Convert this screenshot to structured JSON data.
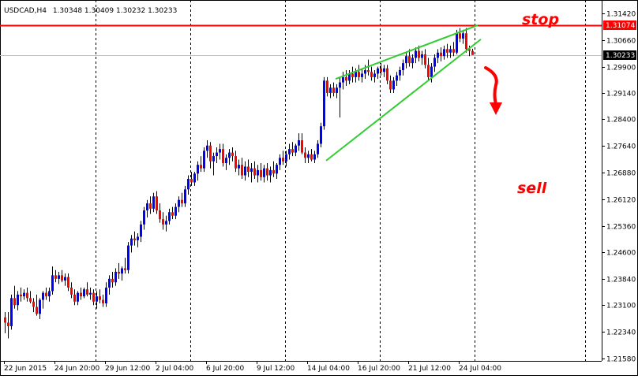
{
  "header": {
    "symbol_caption": "USDCAD,H4",
    "ohlc_values": "1.30348 1.30409 1.30232 1.30233"
  },
  "annotations": {
    "stop_text": "stop",
    "sell_text": "sell"
  },
  "colors": {
    "bull_candle": "#0000ff",
    "bear_candle": "#ff0000",
    "wick": "#000000",
    "stop_line": "#ff0000",
    "bid_line": "#c0c0c0",
    "wedge_lines": "#33cc33",
    "annotation_text": "#ff0000",
    "grid_vertical": "#000000"
  },
  "chart_data": {
    "type": "candlestick",
    "symbol": "USDCAD",
    "timeframe": "H4",
    "title": "USDCAD,H4 1.30348 1.30409 1.30232 1.30233",
    "y_axis_ticks": [
      1.3142,
      1.3066,
      1.299,
      1.2914,
      1.284,
      1.2764,
      1.2688,
      1.2612,
      1.2536,
      1.246,
      1.2384,
      1.231,
      1.2234,
      1.2158
    ],
    "y_axis_tick_labels": [
      "1.31420",
      "1.30660",
      "1.29900",
      "1.29140",
      "1.28400",
      "1.27640",
      "1.26880",
      "1.26120",
      "1.25360",
      "1.24600",
      "1.23840",
      "1.23100",
      "1.22340",
      "1.21580"
    ],
    "ylim": [
      1.2151,
      1.318
    ],
    "x_axis_labels": [
      "22 Jun 2015",
      "24 Jun 20:00",
      "29 Jun 12:00",
      "2 Jul 04:00",
      "6 Jul 20:00",
      "9 Jul 12:00",
      "14 Jul 04:00",
      "16 Jul 20:00",
      "21 Jul 12:00",
      "24 Jul 04:00"
    ],
    "x_axis_label_bar_index": [
      0,
      16,
      32,
      48,
      64,
      80,
      96,
      112,
      128,
      144
    ],
    "vertical_grid_bar_index": [
      29,
      59,
      89,
      119,
      149,
      184
    ],
    "stop_level": {
      "value": 1.31074,
      "label": "1.31074"
    },
    "current_price": {
      "value": 1.30233,
      "label": "1.30233"
    },
    "wedge": {
      "upper": [
        {
          "bar": 105,
          "price": 1.2955
        },
        {
          "bar": 150,
          "price": 1.3108
        }
      ],
      "lower": [
        {
          "bar": 102,
          "price": 1.2722
        },
        {
          "bar": 151,
          "price": 1.3068
        }
      ]
    },
    "candles": [
      {
        "o": 1.2275,
        "h": 1.229,
        "l": 1.223,
        "c": 1.226
      },
      {
        "o": 1.226,
        "h": 1.229,
        "l": 1.2215,
        "c": 1.225
      },
      {
        "o": 1.225,
        "h": 1.234,
        "l": 1.224,
        "c": 1.233
      },
      {
        "o": 1.233,
        "h": 1.2365,
        "l": 1.23,
        "c": 1.231
      },
      {
        "o": 1.231,
        "h": 1.235,
        "l": 1.2295,
        "c": 1.234
      },
      {
        "o": 1.234,
        "h": 1.236,
        "l": 1.232,
        "c": 1.2335
      },
      {
        "o": 1.2335,
        "h": 1.2355,
        "l": 1.2325,
        "c": 1.2345
      },
      {
        "o": 1.2345,
        "h": 1.236,
        "l": 1.232,
        "c": 1.233
      },
      {
        "o": 1.233,
        "h": 1.235,
        "l": 1.2315,
        "c": 1.232
      },
      {
        "o": 1.232,
        "h": 1.233,
        "l": 1.229,
        "c": 1.2305
      },
      {
        "o": 1.2305,
        "h": 1.234,
        "l": 1.228,
        "c": 1.2285
      },
      {
        "o": 1.2285,
        "h": 1.233,
        "l": 1.227,
        "c": 1.2325
      },
      {
        "o": 1.2325,
        "h": 1.235,
        "l": 1.23,
        "c": 1.2345
      },
      {
        "o": 1.2345,
        "h": 1.236,
        "l": 1.2325,
        "c": 1.2335
      },
      {
        "o": 1.2335,
        "h": 1.236,
        "l": 1.232,
        "c": 1.235
      },
      {
        "o": 1.235,
        "h": 1.242,
        "l": 1.234,
        "c": 1.2395
      },
      {
        "o": 1.2395,
        "h": 1.241,
        "l": 1.2375,
        "c": 1.2385
      },
      {
        "o": 1.2385,
        "h": 1.2405,
        "l": 1.237,
        "c": 1.2395
      },
      {
        "o": 1.2395,
        "h": 1.241,
        "l": 1.2375,
        "c": 1.238
      },
      {
        "o": 1.238,
        "h": 1.24,
        "l": 1.2365,
        "c": 1.239
      },
      {
        "o": 1.239,
        "h": 1.24,
        "l": 1.235,
        "c": 1.236
      },
      {
        "o": 1.236,
        "h": 1.2375,
        "l": 1.233,
        "c": 1.234
      },
      {
        "o": 1.234,
        "h": 1.2355,
        "l": 1.231,
        "c": 1.232
      },
      {
        "o": 1.232,
        "h": 1.235,
        "l": 1.231,
        "c": 1.2345
      },
      {
        "o": 1.2345,
        "h": 1.236,
        "l": 1.2325,
        "c": 1.2335
      },
      {
        "o": 1.2335,
        "h": 1.236,
        "l": 1.233,
        "c": 1.2355
      },
      {
        "o": 1.2355,
        "h": 1.2375,
        "l": 1.2335,
        "c": 1.234
      },
      {
        "o": 1.234,
        "h": 1.236,
        "l": 1.2325,
        "c": 1.2345
      },
      {
        "o": 1.2345,
        "h": 1.2355,
        "l": 1.231,
        "c": 1.232
      },
      {
        "o": 1.232,
        "h": 1.235,
        "l": 1.23,
        "c": 1.2335
      },
      {
        "o": 1.2335,
        "h": 1.2355,
        "l": 1.2315,
        "c": 1.2325
      },
      {
        "o": 1.2325,
        "h": 1.234,
        "l": 1.2305,
        "c": 1.2315
      },
      {
        "o": 1.2315,
        "h": 1.2375,
        "l": 1.2305,
        "c": 1.236
      },
      {
        "o": 1.236,
        "h": 1.2395,
        "l": 1.234,
        "c": 1.2385
      },
      {
        "o": 1.2385,
        "h": 1.2405,
        "l": 1.236,
        "c": 1.2375
      },
      {
        "o": 1.2375,
        "h": 1.2415,
        "l": 1.2365,
        "c": 1.2405
      },
      {
        "o": 1.2405,
        "h": 1.243,
        "l": 1.2385,
        "c": 1.24
      },
      {
        "o": 1.24,
        "h": 1.242,
        "l": 1.238,
        "c": 1.2415
      },
      {
        "o": 1.2415,
        "h": 1.2445,
        "l": 1.24,
        "c": 1.241
      },
      {
        "o": 1.241,
        "h": 1.249,
        "l": 1.24,
        "c": 1.248
      },
      {
        "o": 1.248,
        "h": 1.251,
        "l": 1.246,
        "c": 1.25
      },
      {
        "o": 1.25,
        "h": 1.252,
        "l": 1.248,
        "c": 1.2495
      },
      {
        "o": 1.2495,
        "h": 1.2515,
        "l": 1.2475,
        "c": 1.2505
      },
      {
        "o": 1.2505,
        "h": 1.255,
        "l": 1.249,
        "c": 1.254
      },
      {
        "o": 1.254,
        "h": 1.259,
        "l": 1.2525,
        "c": 1.258
      },
      {
        "o": 1.258,
        "h": 1.261,
        "l": 1.256,
        "c": 1.26
      },
      {
        "o": 1.26,
        "h": 1.262,
        "l": 1.257,
        "c": 1.2585
      },
      {
        "o": 1.2585,
        "h": 1.263,
        "l": 1.2575,
        "c": 1.262
      },
      {
        "o": 1.262,
        "h": 1.2635,
        "l": 1.257,
        "c": 1.258
      },
      {
        "o": 1.258,
        "h": 1.26,
        "l": 1.2545,
        "c": 1.2555
      },
      {
        "o": 1.2555,
        "h": 1.2575,
        "l": 1.2525,
        "c": 1.254
      },
      {
        "o": 1.254,
        "h": 1.2565,
        "l": 1.252,
        "c": 1.255
      },
      {
        "o": 1.255,
        "h": 1.2585,
        "l": 1.254,
        "c": 1.2575
      },
      {
        "o": 1.2575,
        "h": 1.259,
        "l": 1.2555,
        "c": 1.2565
      },
      {
        "o": 1.2565,
        "h": 1.26,
        "l": 1.2555,
        "c": 1.259
      },
      {
        "o": 1.259,
        "h": 1.262,
        "l": 1.2575,
        "c": 1.261
      },
      {
        "o": 1.261,
        "h": 1.263,
        "l": 1.259,
        "c": 1.26
      },
      {
        "o": 1.26,
        "h": 1.265,
        "l": 1.259,
        "c": 1.264
      },
      {
        "o": 1.264,
        "h": 1.268,
        "l": 1.2625,
        "c": 1.267
      },
      {
        "o": 1.267,
        "h": 1.269,
        "l": 1.265,
        "c": 1.266
      },
      {
        "o": 1.266,
        "h": 1.269,
        "l": 1.265,
        "c": 1.2685
      },
      {
        "o": 1.2685,
        "h": 1.272,
        "l": 1.2665,
        "c": 1.271
      },
      {
        "o": 1.271,
        "h": 1.2735,
        "l": 1.269,
        "c": 1.27
      },
      {
        "o": 1.27,
        "h": 1.276,
        "l": 1.269,
        "c": 1.275
      },
      {
        "o": 1.275,
        "h": 1.278,
        "l": 1.273,
        "c": 1.2765
      },
      {
        "o": 1.2765,
        "h": 1.2775,
        "l": 1.27,
        "c": 1.272
      },
      {
        "o": 1.272,
        "h": 1.2745,
        "l": 1.268,
        "c": 1.2735
      },
      {
        "o": 1.2735,
        "h": 1.276,
        "l": 1.2715,
        "c": 1.2745
      },
      {
        "o": 1.2745,
        "h": 1.277,
        "l": 1.2725,
        "c": 1.2755
      },
      {
        "o": 1.2755,
        "h": 1.277,
        "l": 1.2705,
        "c": 1.2715
      },
      {
        "o": 1.2715,
        "h": 1.274,
        "l": 1.2695,
        "c": 1.273
      },
      {
        "o": 1.273,
        "h": 1.2755,
        "l": 1.271,
        "c": 1.2745
      },
      {
        "o": 1.2745,
        "h": 1.276,
        "l": 1.272,
        "c": 1.2735
      },
      {
        "o": 1.2735,
        "h": 1.275,
        "l": 1.269,
        "c": 1.27
      },
      {
        "o": 1.27,
        "h": 1.2725,
        "l": 1.268,
        "c": 1.271
      },
      {
        "o": 1.271,
        "h": 1.273,
        "l": 1.267,
        "c": 1.268
      },
      {
        "o": 1.268,
        "h": 1.272,
        "l": 1.2665,
        "c": 1.2705
      },
      {
        "o": 1.2705,
        "h": 1.2725,
        "l": 1.2675,
        "c": 1.269
      },
      {
        "o": 1.269,
        "h": 1.2715,
        "l": 1.266,
        "c": 1.27
      },
      {
        "o": 1.27,
        "h": 1.272,
        "l": 1.267,
        "c": 1.268
      },
      {
        "o": 1.268,
        "h": 1.271,
        "l": 1.266,
        "c": 1.2695
      },
      {
        "o": 1.2695,
        "h": 1.2715,
        "l": 1.2665,
        "c": 1.2675
      },
      {
        "o": 1.2675,
        "h": 1.271,
        "l": 1.266,
        "c": 1.27
      },
      {
        "o": 1.27,
        "h": 1.2715,
        "l": 1.2665,
        "c": 1.268
      },
      {
        "o": 1.268,
        "h": 1.2705,
        "l": 1.266,
        "c": 1.2695
      },
      {
        "o": 1.2695,
        "h": 1.272,
        "l": 1.2675,
        "c": 1.2685
      },
      {
        "o": 1.2685,
        "h": 1.2715,
        "l": 1.267,
        "c": 1.271
      },
      {
        "o": 1.271,
        "h": 1.274,
        "l": 1.2695,
        "c": 1.273
      },
      {
        "o": 1.273,
        "h": 1.275,
        "l": 1.271,
        "c": 1.272
      },
      {
        "o": 1.272,
        "h": 1.275,
        "l": 1.2705,
        "c": 1.274
      },
      {
        "o": 1.274,
        "h": 1.277,
        "l": 1.2725,
        "c": 1.2755
      },
      {
        "o": 1.2755,
        "h": 1.2775,
        "l": 1.2735,
        "c": 1.2745
      },
      {
        "o": 1.2745,
        "h": 1.277,
        "l": 1.2735,
        "c": 1.2765
      },
      {
        "o": 1.2765,
        "h": 1.28,
        "l": 1.275,
        "c": 1.278
      },
      {
        "o": 1.278,
        "h": 1.28,
        "l": 1.274,
        "c": 1.2745
      },
      {
        "o": 1.2745,
        "h": 1.276,
        "l": 1.2715,
        "c": 1.273
      },
      {
        "o": 1.273,
        "h": 1.275,
        "l": 1.2715,
        "c": 1.274
      },
      {
        "o": 1.274,
        "h": 1.2755,
        "l": 1.272,
        "c": 1.2725
      },
      {
        "o": 1.2725,
        "h": 1.275,
        "l": 1.2715,
        "c": 1.274
      },
      {
        "o": 1.274,
        "h": 1.278,
        "l": 1.273,
        "c": 1.277
      },
      {
        "o": 1.277,
        "h": 1.283,
        "l": 1.276,
        "c": 1.282
      },
      {
        "o": 1.282,
        "h": 1.296,
        "l": 1.281,
        "c": 1.295
      },
      {
        "o": 1.295,
        "h": 1.296,
        "l": 1.2905,
        "c": 1.2915
      },
      {
        "o": 1.2915,
        "h": 1.294,
        "l": 1.29,
        "c": 1.293
      },
      {
        "o": 1.293,
        "h": 1.2945,
        "l": 1.2905,
        "c": 1.2915
      },
      {
        "o": 1.2915,
        "h": 1.294,
        "l": 1.29,
        "c": 1.293
      },
      {
        "o": 1.293,
        "h": 1.296,
        "l": 1.2845,
        "c": 1.2945
      },
      {
        "o": 1.2945,
        "h": 1.2975,
        "l": 1.2925,
        "c": 1.296
      },
      {
        "o": 1.296,
        "h": 1.298,
        "l": 1.2935,
        "c": 1.295
      },
      {
        "o": 1.295,
        "h": 1.298,
        "l": 1.294,
        "c": 1.297
      },
      {
        "o": 1.297,
        "h": 1.299,
        "l": 1.2945,
        "c": 1.296
      },
      {
        "o": 1.296,
        "h": 1.2985,
        "l": 1.2945,
        "c": 1.2975
      },
      {
        "o": 1.2975,
        "h": 1.2995,
        "l": 1.295,
        "c": 1.296
      },
      {
        "o": 1.296,
        "h": 1.2985,
        "l": 1.2945,
        "c": 1.297
      },
      {
        "o": 1.297,
        "h": 1.2995,
        "l": 1.2955,
        "c": 1.298
      },
      {
        "o": 1.298,
        "h": 1.301,
        "l": 1.2965,
        "c": 1.2975
      },
      {
        "o": 1.2975,
        "h": 1.299,
        "l": 1.295,
        "c": 1.296
      },
      {
        "o": 1.296,
        "h": 1.298,
        "l": 1.2945,
        "c": 1.297
      },
      {
        "o": 1.297,
        "h": 1.299,
        "l": 1.2955,
        "c": 1.2985
      },
      {
        "o": 1.2985,
        "h": 1.3,
        "l": 1.2965,
        "c": 1.2975
      },
      {
        "o": 1.2975,
        "h": 1.2995,
        "l": 1.296,
        "c": 1.2985
      },
      {
        "o": 1.2985,
        "h": 1.2995,
        "l": 1.294,
        "c": 1.295
      },
      {
        "o": 1.295,
        "h": 1.2965,
        "l": 1.2915,
        "c": 1.2925
      },
      {
        "o": 1.2925,
        "h": 1.296,
        "l": 1.2915,
        "c": 1.295
      },
      {
        "o": 1.295,
        "h": 1.2975,
        "l": 1.2935,
        "c": 1.2965
      },
      {
        "o": 1.2965,
        "h": 1.299,
        "l": 1.295,
        "c": 1.298
      },
      {
        "o": 1.298,
        "h": 1.301,
        "l": 1.2965,
        "c": 1.3
      },
      {
        "o": 1.3,
        "h": 1.303,
        "l": 1.2985,
        "c": 1.302
      },
      {
        "o": 1.302,
        "h": 1.304,
        "l": 1.299,
        "c": 1.3
      },
      {
        "o": 1.3,
        "h": 1.3025,
        "l": 1.2985,
        "c": 1.3015
      },
      {
        "o": 1.3015,
        "h": 1.3045,
        "l": 1.3,
        "c": 1.3035
      },
      {
        "o": 1.3035,
        "h": 1.305,
        "l": 1.3005,
        "c": 1.3015
      },
      {
        "o": 1.3015,
        "h": 1.3035,
        "l": 1.2995,
        "c": 1.3025
      },
      {
        "o": 1.3025,
        "h": 1.304,
        "l": 1.2985,
        "c": 1.2995
      },
      {
        "o": 1.2995,
        "h": 1.3015,
        "l": 1.295,
        "c": 1.296
      },
      {
        "o": 1.296,
        "h": 1.3,
        "l": 1.2945,
        "c": 1.299
      },
      {
        "o": 1.299,
        "h": 1.3025,
        "l": 1.2975,
        "c": 1.3015
      },
      {
        "o": 1.3015,
        "h": 1.304,
        "l": 1.3,
        "c": 1.303
      },
      {
        "o": 1.303,
        "h": 1.3045,
        "l": 1.3005,
        "c": 1.302
      },
      {
        "o": 1.302,
        "h": 1.305,
        "l": 1.301,
        "c": 1.304
      },
      {
        "o": 1.304,
        "h": 1.3055,
        "l": 1.3015,
        "c": 1.303
      },
      {
        "o": 1.303,
        "h": 1.305,
        "l": 1.3015,
        "c": 1.304
      },
      {
        "o": 1.304,
        "h": 1.306,
        "l": 1.302,
        "c": 1.303
      },
      {
        "o": 1.303,
        "h": 1.3095,
        "l": 1.3025,
        "c": 1.3085
      },
      {
        "o": 1.3085,
        "h": 1.31,
        "l": 1.306,
        "c": 1.307
      },
      {
        "o": 1.307,
        "h": 1.3095,
        "l": 1.3055,
        "c": 1.3085
      },
      {
        "o": 1.3085,
        "h": 1.31,
        "l": 1.303,
        "c": 1.304
      },
      {
        "o": 1.304,
        "h": 1.305,
        "l": 1.302,
        "c": 1.3035
      },
      {
        "o": 1.30348,
        "h": 1.30409,
        "l": 1.30232,
        "c": 1.30233
      }
    ]
  }
}
